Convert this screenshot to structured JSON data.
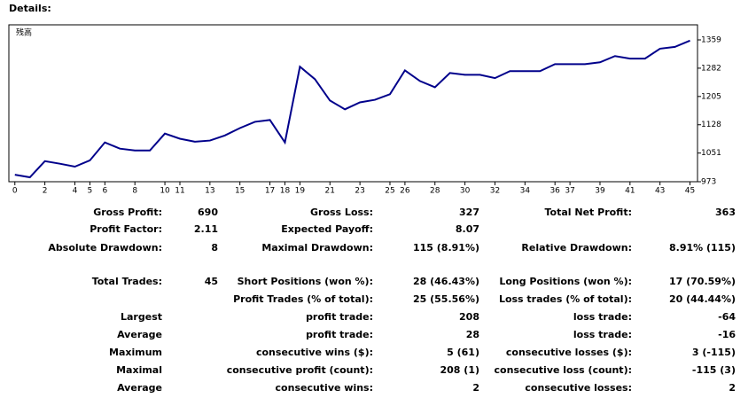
{
  "header": "Details:",
  "chart_data": {
    "type": "line",
    "x": [
      0,
      1,
      2,
      3,
      4,
      5,
      6,
      7,
      8,
      9,
      10,
      11,
      12,
      13,
      14,
      15,
      16,
      17,
      18,
      19,
      20,
      21,
      22,
      23,
      24,
      25,
      26,
      27,
      28,
      29,
      30,
      31,
      32,
      33,
      34,
      35,
      36,
      37,
      38,
      39,
      40,
      41,
      42,
      43,
      44,
      45
    ],
    "series": [
      {
        "name": "残高",
        "color": "#00008b",
        "values": [
          992,
          985,
          1029,
          1022,
          1014,
          1031,
          1080,
          1063,
          1058,
          1058,
          1104,
          1090,
          1082,
          1085,
          1099,
          1119,
          1136,
          1141,
          1080,
          1286,
          1252,
          1194,
          1170,
          1189,
          1196,
          1211,
          1276,
          1247,
          1230,
          1269,
          1264,
          1264,
          1255,
          1274,
          1274,
          1274,
          1293,
          1293,
          1293,
          1298,
          1315,
          1308,
          1308,
          1335,
          1340,
          1357
        ]
      }
    ],
    "xlim": [
      -0.4,
      45.5
    ],
    "ylim": [
      973,
      1400
    ],
    "xticks": [
      0,
      2,
      4,
      5,
      6,
      8,
      10,
      11,
      13,
      15,
      17,
      18,
      19,
      21,
      23,
      25,
      26,
      28,
      30,
      32,
      34,
      36,
      37,
      39,
      41,
      43,
      45
    ],
    "yticks": [
      973,
      1051,
      1128,
      1205,
      1282,
      1359
    ],
    "grid": false
  },
  "stats": {
    "rows": [
      [
        "Gross Profit:",
        "690",
        "Gross Loss:",
        "327",
        "Total Net Profit:",
        "363"
      ],
      [
        "Profit Factor:",
        "2.11",
        "Expected Payoff:",
        "8.07",
        null,
        null
      ],
      [
        "Absolute Drawdown:",
        "8",
        "Maximal Drawdown:",
        "115 (8.91%)",
        "Relative Drawdown:",
        "8.91% (115)"
      ],
      [
        "Total Trades:",
        "45",
        "Short Positions (won %):",
        "28 (46.43%)",
        "Long Positions (won %):",
        "17 (70.59%)"
      ],
      [
        null,
        null,
        "Profit Trades (% of total):",
        "25 (55.56%)",
        "Loss trades (% of total):",
        "20 (44.44%)"
      ],
      [
        "Largest",
        null,
        "profit trade:",
        "208",
        "loss trade:",
        "-64"
      ],
      [
        "Average",
        null,
        "profit trade:",
        "28",
        "loss trade:",
        "-16"
      ],
      [
        "Maximum",
        null,
        "consecutive wins ($):",
        "5 (61)",
        "consecutive losses ($):",
        "3 (-115)"
      ],
      [
        "Maximal",
        null,
        "consecutive profit (count):",
        "208 (1)",
        "consecutive loss (count):",
        "-115 (3)"
      ],
      [
        "Average",
        null,
        "consecutive wins:",
        "2",
        "consecutive losses:",
        "2"
      ]
    ]
  }
}
